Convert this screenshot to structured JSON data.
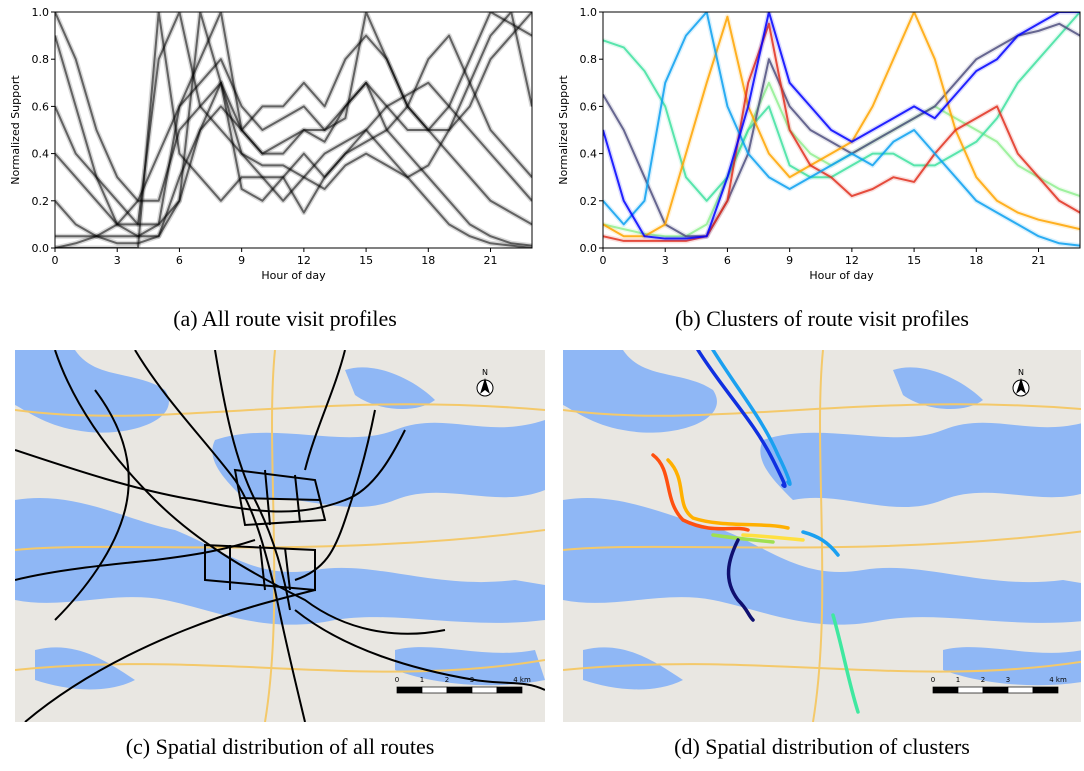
{
  "chart_data": [
    {
      "type": "line",
      "xlabel": "Hour of day",
      "ylabel": "Normalized Support",
      "x": [
        0,
        1,
        2,
        3,
        4,
        5,
        6,
        7,
        8,
        9,
        10,
        11,
        12,
        13,
        14,
        15,
        16,
        17,
        18,
        19,
        20,
        21,
        22,
        23
      ],
      "xlim": [
        0,
        23
      ],
      "xticks": [
        0,
        3,
        6,
        9,
        12,
        15,
        18,
        21
      ],
      "ylim": [
        0,
        1
      ],
      "yticks": [
        {
          "value": 0,
          "label": "0.0"
        },
        0.2,
        0.4,
        0.6,
        0.8,
        {
          "value": 1,
          "label": "1.0"
        }
      ],
      "series": [
        {
          "color": "#000000",
          "values": [
            1,
            0.8,
            0.5,
            0.3,
            0.2,
            0.2,
            0.5,
            0.6,
            0.7,
            0.5,
            0.4,
            0.4,
            0.5,
            0.5,
            0.6,
            0.7,
            0.6,
            0.5,
            0.5,
            0.5,
            0.6,
            0.8,
            0.9,
            1
          ]
        },
        {
          "color": "#000000",
          "values": [
            0,
            0,
            0,
            0,
            0,
            1,
            0.4,
            0.3,
            0.2,
            0.3,
            0.3,
            0.3,
            0.4,
            0.3,
            0.4,
            0.5,
            0.4,
            0.3,
            0.2,
            0.1,
            0.05,
            0.02,
            0.01,
            0
          ]
        },
        {
          "color": "#000000",
          "values": [
            0.05,
            0.05,
            0.05,
            0.05,
            0.05,
            0.1,
            0.6,
            0.8,
            1,
            0.5,
            0.4,
            0.45,
            0.5,
            0.45,
            0.6,
            0.7,
            0.5,
            0.4,
            0.3,
            0.2,
            0.1,
            0.05,
            0.02,
            0.01
          ]
        },
        {
          "color": "#000000",
          "values": [
            0.9,
            0.6,
            0.3,
            0.1,
            0.05,
            0.05,
            0.3,
            0.5,
            0.6,
            0.5,
            0.6,
            0.6,
            0.7,
            0.6,
            0.8,
            0.9,
            0.8,
            0.6,
            0.5,
            0.6,
            0.8,
            1,
            0.95,
            0.9
          ]
        },
        {
          "color": "#000000",
          "values": [
            0.2,
            0.1,
            0.05,
            0.02,
            0.02,
            0.05,
            0.2,
            0.5,
            0.7,
            0.4,
            0.3,
            0.2,
            0.3,
            0.25,
            0.35,
            0.4,
            0.35,
            0.3,
            0.35,
            0.5,
            0.7,
            0.9,
            1,
            0.6
          ]
        },
        {
          "color": "#000000",
          "values": [
            0.4,
            0.3,
            0.2,
            0.1,
            0.1,
            0.8,
            1,
            0.6,
            0.5,
            0.4,
            0.35,
            0.35,
            0.3,
            0.4,
            0.45,
            0.5,
            0.6,
            0.65,
            0.7,
            0.6,
            0.5,
            0.4,
            0.3,
            0.2
          ]
        },
        {
          "color": "#000000",
          "values": [
            0,
            0.02,
            0.05,
            0.1,
            0.2,
            0.4,
            0.6,
            0.7,
            0.8,
            0.6,
            0.5,
            0.55,
            0.6,
            0.5,
            0.55,
            1,
            0.8,
            0.6,
            0.5,
            0.4,
            0.3,
            0.2,
            0.15,
            0.1
          ]
        },
        {
          "color": "#000000",
          "values": [
            0.6,
            0.4,
            0.3,
            0.2,
            0.1,
            0.1,
            0.2,
            1,
            0.7,
            0.25,
            0.2,
            0.3,
            0.15,
            0.3,
            0.4,
            0.45,
            0.5,
            0.6,
            0.8,
            0.9,
            0.7,
            0.5,
            0.4,
            0.3
          ]
        }
      ]
    },
    {
      "type": "line",
      "xlabel": "Hour of day",
      "ylabel": "Normalized Support",
      "x": [
        0,
        1,
        2,
        3,
        4,
        5,
        6,
        7,
        8,
        9,
        10,
        11,
        12,
        13,
        14,
        15,
        16,
        17,
        18,
        19,
        20,
        21,
        22,
        23
      ],
      "xlim": [
        0,
        23
      ],
      "xticks": [
        0,
        3,
        6,
        9,
        12,
        15,
        18,
        21
      ],
      "ylim": [
        0,
        1
      ],
      "yticks": [
        {
          "value": 0,
          "label": "0.0"
        },
        0.2,
        0.4,
        0.6,
        0.8,
        {
          "value": 1,
          "label": "1.0"
        }
      ],
      "series": [
        {
          "color": "#90ee90",
          "values": [
            0.1,
            0.08,
            0.06,
            0.05,
            0.05,
            0.1,
            0.3,
            0.5,
            0.7,
            0.5,
            0.4,
            0.35,
            0.4,
            0.45,
            0.5,
            0.55,
            0.6,
            0.55,
            0.5,
            0.45,
            0.35,
            0.3,
            0.25,
            0.22
          ]
        },
        {
          "color": "#40e0a0",
          "values": [
            0.88,
            0.85,
            0.75,
            0.6,
            0.3,
            0.2,
            0.3,
            0.5,
            0.6,
            0.35,
            0.3,
            0.3,
            0.35,
            0.4,
            0.4,
            0.35,
            0.35,
            0.4,
            0.45,
            0.55,
            0.7,
            0.8,
            0.9,
            1
          ]
        },
        {
          "color": "#505080",
          "values": [
            0.65,
            0.5,
            0.3,
            0.1,
            0.05,
            0.05,
            0.2,
            0.4,
            0.8,
            0.6,
            0.5,
            0.45,
            0.4,
            0.45,
            0.5,
            0.55,
            0.6,
            0.7,
            0.8,
            0.85,
            0.9,
            0.92,
            0.95,
            0.9
          ]
        },
        {
          "color": "#ffa500",
          "values": [
            0.1,
            0.05,
            0.05,
            0.1,
            0.4,
            0.7,
            0.98,
            0.6,
            0.4,
            0.3,
            0.35,
            0.4,
            0.45,
            0.6,
            0.8,
            1,
            0.8,
            0.5,
            0.3,
            0.2,
            0.15,
            0.12,
            0.1,
            0.08
          ]
        },
        {
          "color": "#e03020",
          "values": [
            0.05,
            0.03,
            0.03,
            0.03,
            0.03,
            0.05,
            0.2,
            0.7,
            0.95,
            0.5,
            0.35,
            0.3,
            0.22,
            0.25,
            0.3,
            0.28,
            0.4,
            0.5,
            0.55,
            0.6,
            0.4,
            0.3,
            0.2,
            0.15
          ]
        },
        {
          "color": "#0aa0f0",
          "values": [
            0.2,
            0.1,
            0.2,
            0.7,
            0.9,
            1,
            0.6,
            0.4,
            0.3,
            0.25,
            0.3,
            0.35,
            0.4,
            0.35,
            0.45,
            0.5,
            0.4,
            0.3,
            0.2,
            0.15,
            0.1,
            0.05,
            0.02,
            0.01
          ]
        },
        {
          "color": "#0000ff",
          "values": [
            0.5,
            0.2,
            0.05,
            0.04,
            0.04,
            0.05,
            0.3,
            0.6,
            1,
            0.7,
            0.6,
            0.5,
            0.45,
            0.5,
            0.55,
            0.6,
            0.55,
            0.65,
            0.75,
            0.8,
            0.9,
            0.95,
            1,
            1
          ]
        }
      ]
    }
  ],
  "captions": [
    "(a) All route visit profiles",
    "(b) Clusters of route visit profiles",
    "(c) Spatial distribution of all routes",
    "(d) Spatial distribution of clusters"
  ],
  "maps": [
    {
      "north": "N",
      "scale_labels": [
        "0",
        "1",
        "2",
        "3",
        "4 km"
      ]
    },
    {
      "north": "N",
      "scale_labels": [
        "0",
        "1",
        "2",
        "3",
        "4 km"
      ]
    }
  ]
}
